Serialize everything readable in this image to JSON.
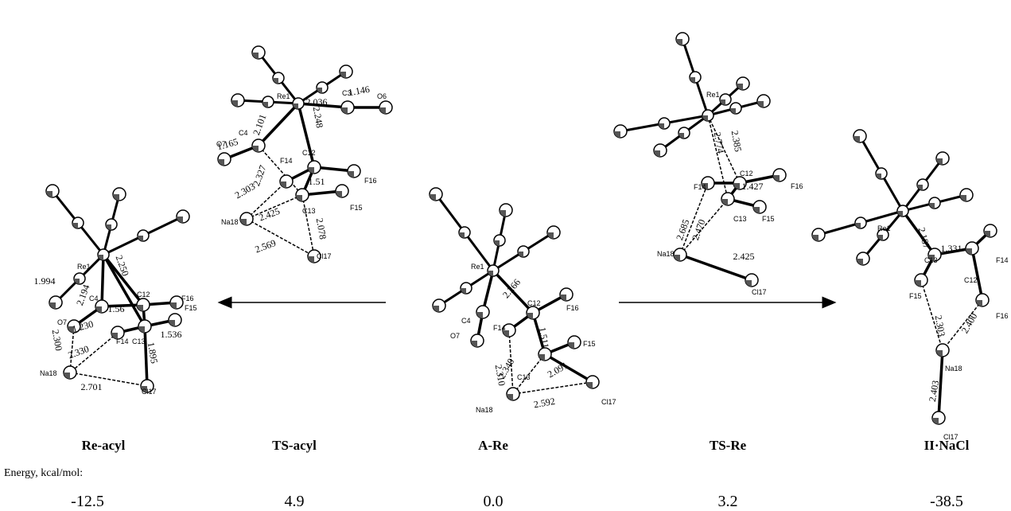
{
  "energy_label": "Energy, kcal/mol:",
  "structures": [
    {
      "name": "Re-acyl",
      "energy": "-12.5",
      "atoms": [
        "Re1",
        "C4",
        "C12",
        "F16",
        "F15",
        "O7",
        "F14",
        "C13",
        "Na18",
        "Cl17"
      ],
      "bonds": [
        "1.994",
        "2.250",
        "2.194",
        "1.56",
        "1.230",
        "1.536",
        "2.300",
        "2.330",
        "1.895",
        "2.701"
      ]
    },
    {
      "name": "TS-acyl",
      "energy": "4.9",
      "atoms": [
        "Re1",
        "C3",
        "O6",
        "C4",
        "O7",
        "C12",
        "F14",
        "F16",
        "F15",
        "C13",
        "Na18",
        "Cl17"
      ],
      "bonds": [
        "2.036",
        "1.146",
        "1.165",
        "2.101",
        "2.248",
        "2.327",
        "1.51",
        "2.303",
        "2.425",
        "2.078",
        "2.569"
      ]
    },
    {
      "name": "A-Re",
      "energy": "0.0",
      "atoms": [
        "Re1",
        "C12",
        "F16",
        "C4",
        "O7",
        "F14",
        "F15",
        "C13",
        "Na18",
        "Cl17"
      ],
      "bonds": [
        "2.266",
        "1.511",
        "2.340",
        "2.091",
        "2.310",
        "2.592"
      ]
    },
    {
      "name": "TS-Re",
      "energy": "3.2",
      "atoms": [
        "Re1",
        "C12",
        "F14",
        "F16",
        "C13",
        "F15",
        "Na18",
        "Cl17"
      ],
      "bonds": [
        "2.774",
        "2.385",
        "1.427",
        "2.685",
        "2.470",
        "2.425"
      ]
    },
    {
      "name": "II·NaCl",
      "energy": "-38.5",
      "atoms": [
        "Re1",
        "C13",
        "C12",
        "F14",
        "F15",
        "F16",
        "Na18",
        "Cl17"
      ],
      "bonds": [
        "2.187",
        "1.331",
        "2.303",
        "2.400",
        "2.403"
      ]
    }
  ]
}
